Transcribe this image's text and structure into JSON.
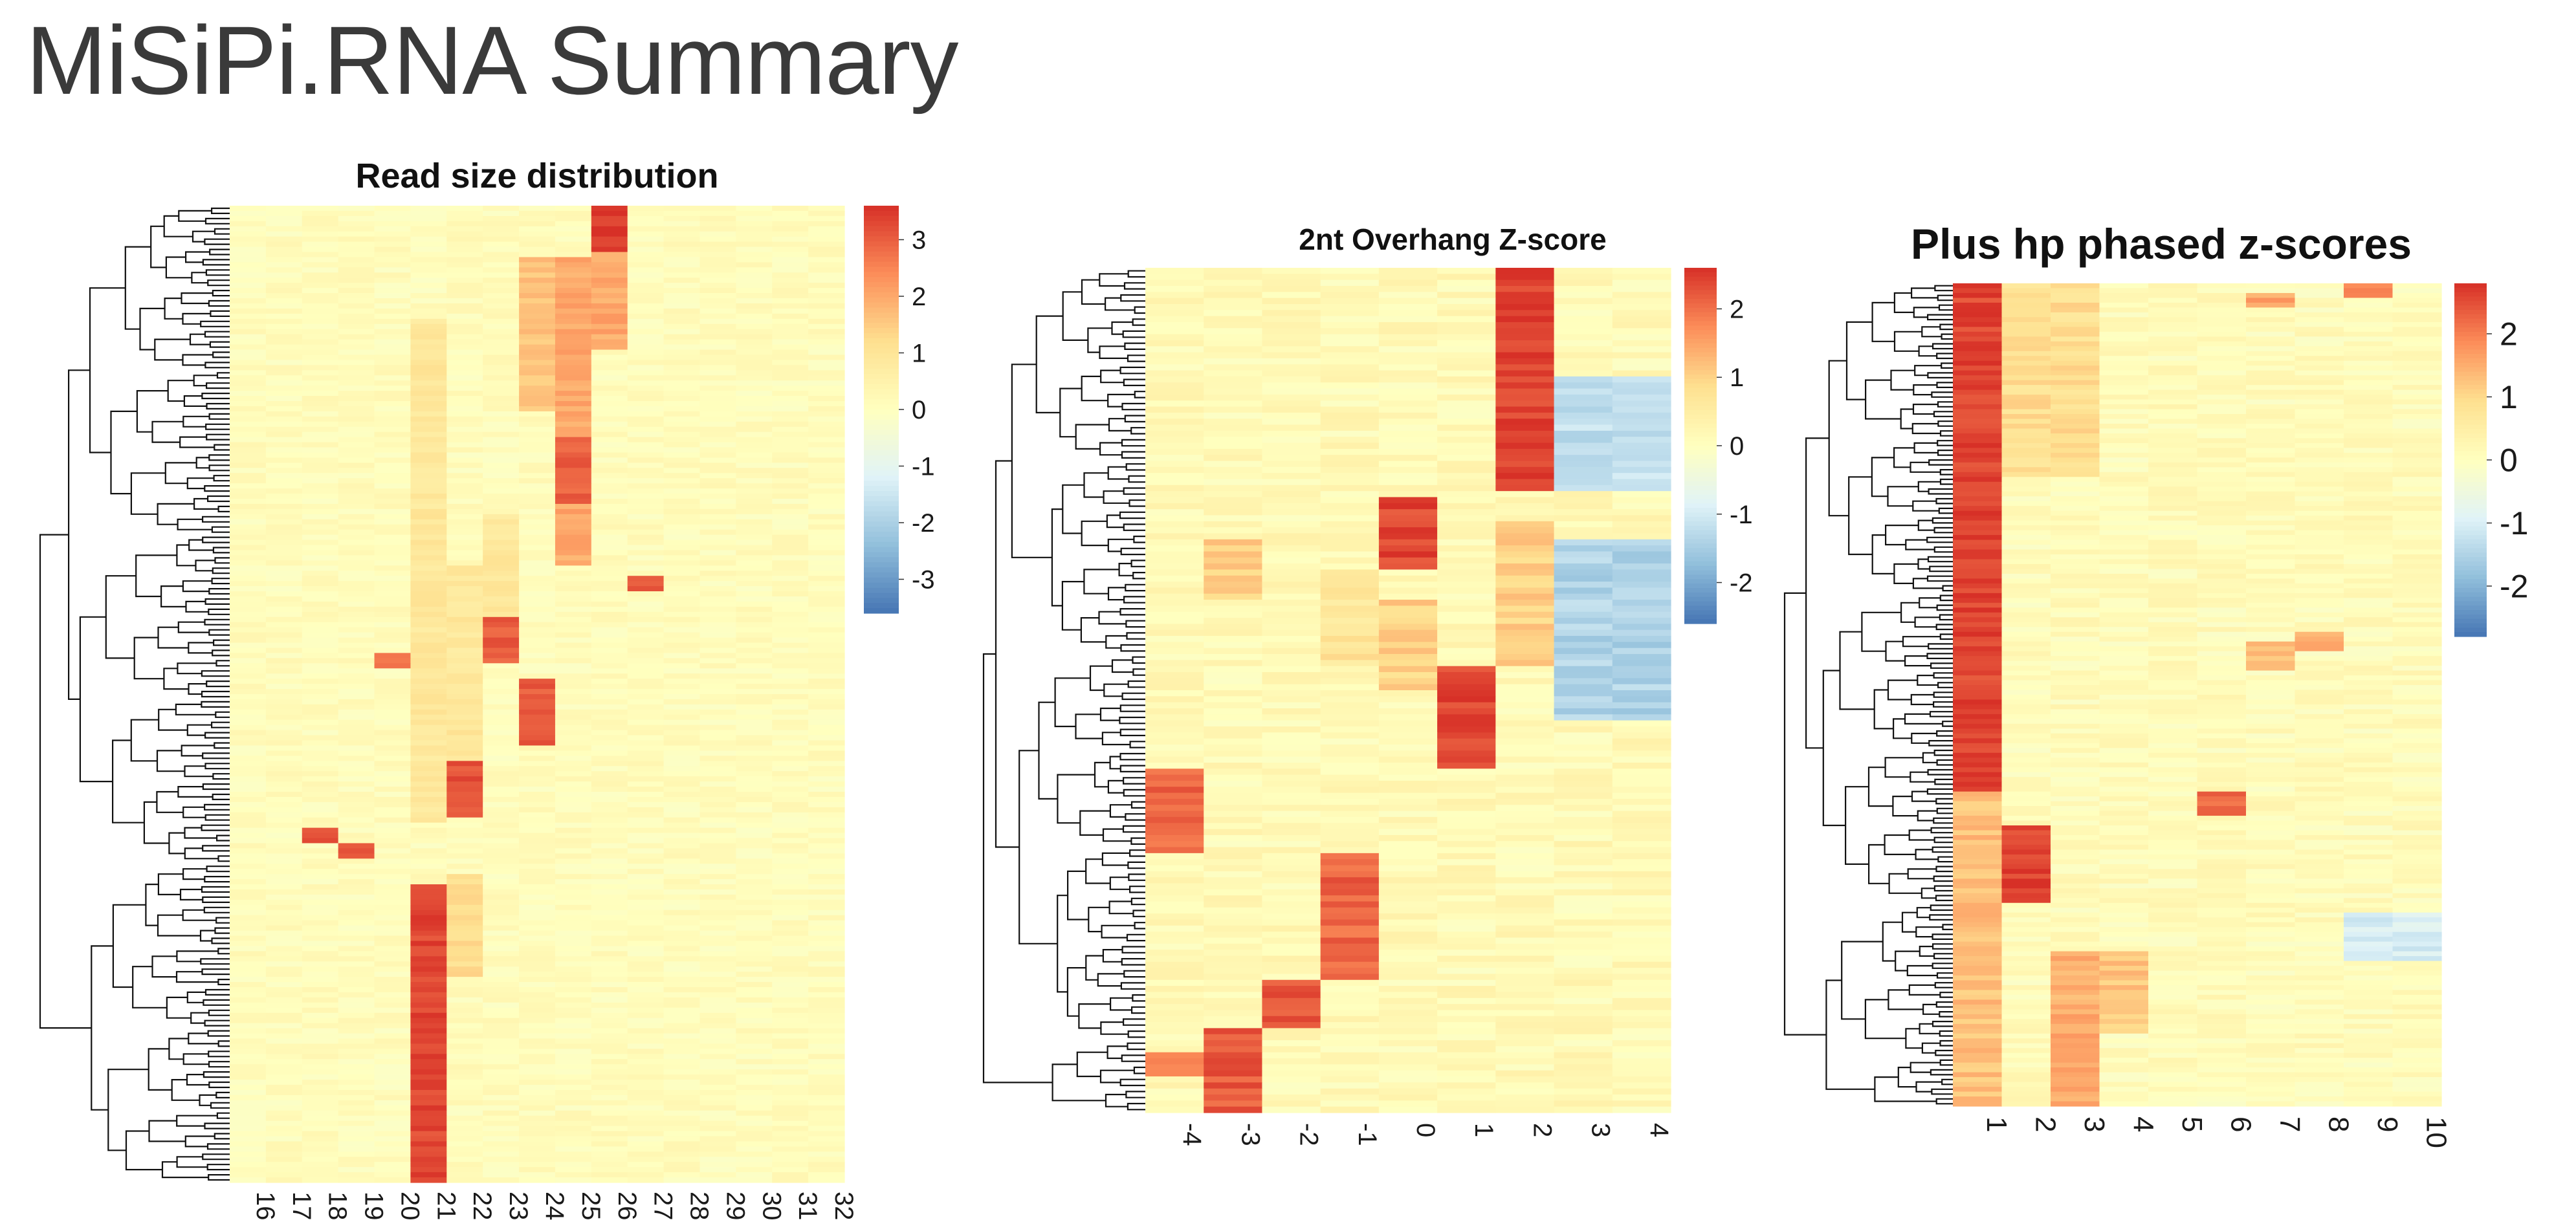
{
  "page": {
    "title": "MiSiPi.RNA Summary"
  },
  "colors": {
    "scale": [
      "#4575b4",
      "#91bfdb",
      "#e0f3f8",
      "#ffffbf",
      "#fee090",
      "#fc8d59",
      "#d73027"
    ],
    "baseline": "#f3f6d9"
  },
  "chart_data": [
    {
      "type": "heatmap",
      "title": "Read size distribution",
      "xlabel": "",
      "ylabel": "",
      "x_categories": [
        "16",
        "17",
        "18",
        "19",
        "20",
        "21",
        "22",
        "23",
        "24",
        "25",
        "26",
        "27",
        "28",
        "29",
        "30",
        "31",
        "32"
      ],
      "n_rows": 190,
      "row_dendrogram": true,
      "colorbar": {
        "ticks": [
          3,
          2,
          1,
          0,
          -1,
          -2,
          -3
        ],
        "range": [
          -3.6,
          3.6
        ]
      },
      "baseline_value": 0.1,
      "blocks": [
        {
          "cols": [
            "21"
          ],
          "rows": [
            132,
            190
          ],
          "value": 3.3
        },
        {
          "cols": [
            "22"
          ],
          "rows": [
            108,
            119
          ],
          "value": 3.2
        },
        {
          "cols": [
            "23"
          ],
          "rows": [
            79,
            89
          ],
          "value": 3.0
        },
        {
          "cols": [
            "24"
          ],
          "rows": [
            92,
            105
          ],
          "value": 3.0
        },
        {
          "cols": [
            "24"
          ],
          "rows": [
            10,
            40
          ],
          "value": 1.6
        },
        {
          "cols": [
            "25"
          ],
          "rows": [
            10,
            70
          ],
          "value": 2.0
        },
        {
          "cols": [
            "25"
          ],
          "rows": [
            45,
            58
          ],
          "value": 3.0
        },
        {
          "cols": [
            "26"
          ],
          "rows": [
            0,
            9
          ],
          "value": 3.5
        },
        {
          "cols": [
            "26"
          ],
          "rows": [
            9,
            28
          ],
          "value": 2.0
        },
        {
          "cols": [
            "18"
          ],
          "rows": [
            121,
            124
          ],
          "value": 3.2
        },
        {
          "cols": [
            "19"
          ],
          "rows": [
            124,
            127
          ],
          "value": 3.2
        },
        {
          "cols": [
            "27"
          ],
          "rows": [
            72,
            75
          ],
          "value": 3.2
        },
        {
          "cols": [
            "20"
          ],
          "rows": [
            87,
            90
          ],
          "value": 2.6
        },
        {
          "cols": [
            "21"
          ],
          "rows": [
            22,
            120
          ],
          "value": 0.9
        },
        {
          "cols": [
            "22"
          ],
          "rows": [
            70,
            108
          ],
          "value": 0.9
        },
        {
          "cols": [
            "23"
          ],
          "rows": [
            60,
            80
          ],
          "value": 0.9
        },
        {
          "cols": [
            "22"
          ],
          "rows": [
            130,
            150
          ],
          "value": 1.2
        }
      ]
    },
    {
      "type": "heatmap",
      "title": "2nt Overhang Z-score",
      "xlabel": "",
      "ylabel": "",
      "x_categories": [
        "-4",
        "-3",
        "-2",
        "-1",
        "0",
        "1",
        "2",
        "3",
        "4"
      ],
      "n_rows": 140,
      "row_dendrogram": true,
      "colorbar": {
        "ticks": [
          2,
          1,
          0,
          -1,
          -2
        ],
        "range": [
          -2.6,
          2.6
        ]
      },
      "baseline_value": 0.15,
      "blocks": [
        {
          "cols": [
            "2"
          ],
          "rows": [
            0,
            37
          ],
          "value": 2.4
        },
        {
          "cols": [
            "3",
            "4"
          ],
          "rows": [
            18,
            37
          ],
          "value": -1.2
        },
        {
          "cols": [
            "3",
            "4"
          ],
          "rows": [
            45,
            75
          ],
          "value": -1.4
        },
        {
          "cols": [
            "0"
          ],
          "rows": [
            38,
            50
          ],
          "value": 2.4
        },
        {
          "cols": [
            "1"
          ],
          "rows": [
            66,
            83
          ],
          "value": 2.4
        },
        {
          "cols": [
            "-4"
          ],
          "rows": [
            83,
            97
          ],
          "value": 2.1
        },
        {
          "cols": [
            "-1"
          ],
          "rows": [
            97,
            118
          ],
          "value": 2.1
        },
        {
          "cols": [
            "-2"
          ],
          "rows": [
            118,
            126
          ],
          "value": 2.2
        },
        {
          "cols": [
            "-3"
          ],
          "rows": [
            126,
            140
          ],
          "value": 2.2
        },
        {
          "cols": [
            "-4"
          ],
          "rows": [
            130,
            134
          ],
          "value": 1.8
        },
        {
          "cols": [
            "-3"
          ],
          "rows": [
            45,
            55
          ],
          "value": 1.0
        },
        {
          "cols": [
            "0"
          ],
          "rows": [
            55,
            70
          ],
          "value": 1.0
        },
        {
          "cols": [
            "-1"
          ],
          "rows": [
            50,
            66
          ],
          "value": 0.7
        },
        {
          "cols": [
            "2"
          ],
          "rows": [
            42,
            66
          ],
          "value": 1.0
        }
      ]
    },
    {
      "type": "heatmap",
      "title": "Plus hp phased z-scores",
      "xlabel": "",
      "ylabel": "",
      "x_categories": [
        "1",
        "2",
        "3",
        "4",
        "5",
        "6",
        "7",
        "8",
        "9",
        "10"
      ],
      "n_rows": 170,
      "row_dendrogram": true,
      "colorbar": {
        "ticks": [
          2,
          1,
          0,
          -1,
          -2
        ],
        "range": [
          -2.8,
          2.8
        ]
      },
      "baseline_value": 0.1,
      "blocks": [
        {
          "cols": [
            "1"
          ],
          "rows": [
            0,
            105
          ],
          "value": 2.6
        },
        {
          "cols": [
            "1"
          ],
          "rows": [
            105,
            170
          ],
          "value": 1.3
        },
        {
          "cols": [
            "2"
          ],
          "rows": [
            112,
            128
          ],
          "value": 2.6
        },
        {
          "cols": [
            "3"
          ],
          "rows": [
            138,
            170
          ],
          "value": 1.5
        },
        {
          "cols": [
            "4"
          ],
          "rows": [
            138,
            155
          ],
          "value": 1.2
        },
        {
          "cols": [
            "6"
          ],
          "rows": [
            105,
            110
          ],
          "value": 2.3
        },
        {
          "cols": [
            "9"
          ],
          "rows": [
            0,
            3
          ],
          "value": 2.0
        },
        {
          "cols": [
            "7"
          ],
          "rows": [
            2,
            5
          ],
          "value": 1.6
        },
        {
          "cols": [
            "8"
          ],
          "rows": [
            72,
            76
          ],
          "value": 1.6
        },
        {
          "cols": [
            "7"
          ],
          "rows": [
            74,
            80
          ],
          "value": 1.2
        },
        {
          "cols": [
            "2",
            "3"
          ],
          "rows": [
            0,
            40
          ],
          "value": 0.9
        },
        {
          "cols": [
            "9",
            "10"
          ],
          "rows": [
            130,
            140
          ],
          "value": -1.0
        }
      ]
    }
  ]
}
